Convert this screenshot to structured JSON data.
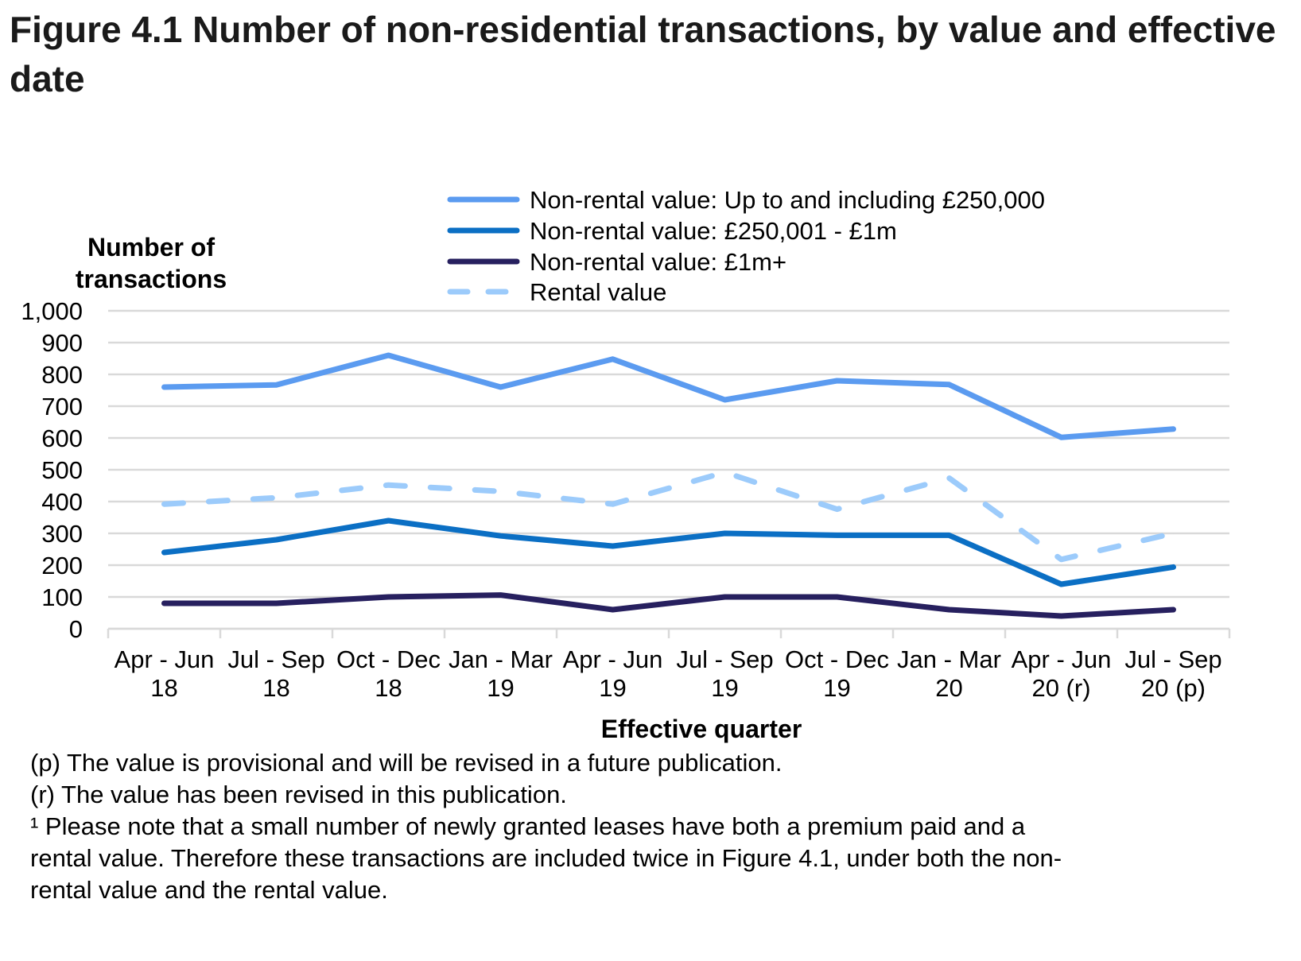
{
  "figure": {
    "title": "Figure 4.1  Number of non-residential transactions, by value and effective date"
  },
  "chart_data": {
    "type": "line",
    "title": "Figure 4.1  Number of non-residential transactions, by value and effective date",
    "xlabel": "Effective quarter",
    "ylabel": "Number of transactions",
    "ylabel_lines": [
      "Number of",
      "transactions"
    ],
    "ylim": [
      0,
      1000
    ],
    "yticks": [
      0,
      100,
      200,
      300,
      400,
      500,
      600,
      700,
      800,
      900,
      1000
    ],
    "ytick_labels": [
      "0",
      "100",
      "200",
      "300",
      "400",
      "500",
      "600",
      "700",
      "800",
      "900",
      "1,000"
    ],
    "grid": true,
    "legend_position": "top-right",
    "categories": [
      [
        "Apr - Jun",
        "18"
      ],
      [
        "Jul - Sep",
        "18"
      ],
      [
        "Oct - Dec",
        "18"
      ],
      [
        "Jan - Mar",
        "19"
      ],
      [
        "Apr - Jun",
        "19"
      ],
      [
        "Jul - Sep",
        "19"
      ],
      [
        "Oct - Dec",
        "19"
      ],
      [
        "Jan - Mar",
        "20"
      ],
      [
        "Apr - Jun",
        "20 (r)"
      ],
      [
        "Jul - Sep",
        "20 (p)"
      ]
    ],
    "series": [
      {
        "name": "Non-rental value: Up to and including £250,000",
        "color": "#5b9bf0",
        "style": "solid",
        "values": [
          760,
          767,
          860,
          760,
          848,
          720,
          780,
          768,
          602,
          628
        ]
      },
      {
        "name": "Non-rental value: £250,001 - £1m",
        "color": "#0b6fc4",
        "style": "solid",
        "values": [
          240,
          280,
          340,
          292,
          260,
          300,
          294,
          294,
          140,
          194
        ]
      },
      {
        "name": "Non-rental value: £1m+",
        "color": "#27205f",
        "style": "solid",
        "values": [
          80,
          80,
          100,
          106,
          60,
          100,
          100,
          60,
          40,
          60
        ]
      },
      {
        "name": "Rental value",
        "color": "#9ccbfb",
        "style": "dashed",
        "values": [
          392,
          412,
          452,
          432,
          392,
          492,
          376,
          474,
          218,
          300
        ]
      }
    ]
  },
  "footnotes": [
    "(p) The value is provisional and will be revised in a future publication.",
    "(r) The value has been revised in this publication.",
    "¹ Please note that a small number of newly granted leases have both a premium paid and a",
    "rental value. Therefore these transactions are included twice in Figure 4.1, under both the non-",
    "rental value and the rental value."
  ]
}
